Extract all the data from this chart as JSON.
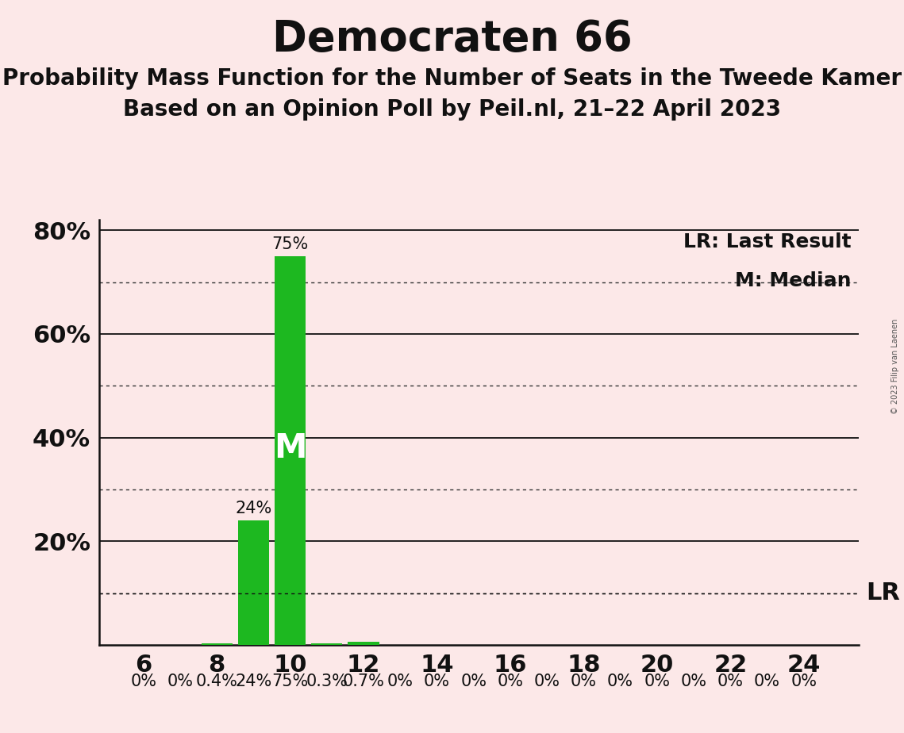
{
  "title": "Democraten 66",
  "subtitle1": "Probability Mass Function for the Number of Seats in the Tweede Kamer",
  "subtitle2": "Based on an Opinion Poll by Peil.nl, 21–22 April 2023",
  "copyright": "© 2023 Filip van Laenen",
  "background_color": "#fce8e8",
  "bar_color": "#1db820",
  "seats": [
    6,
    7,
    8,
    9,
    10,
    11,
    12,
    13,
    14,
    15,
    16,
    17,
    18,
    19,
    20,
    21,
    22,
    23,
    24
  ],
  "probabilities": [
    0.0,
    0.0,
    0.4,
    24.0,
    75.0,
    0.3,
    0.7,
    0.0,
    0.0,
    0.0,
    0.0,
    0.0,
    0.0,
    0.0,
    0.0,
    0.0,
    0.0,
    0.0,
    0.0
  ],
  "labels": [
    "0%",
    "0%",
    "0.4%",
    "24%",
    "75%",
    "0.3%",
    "0.7%",
    "0%",
    "0%",
    "0%",
    "0%",
    "0%",
    "0%",
    "0%",
    "0%",
    "0%",
    "0%",
    "0%",
    "0%"
  ],
  "median_seat": 10,
  "last_result_value": 10.0,
  "ylim": [
    0,
    82
  ],
  "solid_yticks": [
    20,
    40,
    60,
    80
  ],
  "dotted_yticks": [
    10,
    30,
    50,
    70
  ],
  "legend_lr": "LR: Last Result",
  "legend_m": "M: Median",
  "tick_fontsize": 22,
  "title_fontsize": 38,
  "subtitle_fontsize": 20,
  "bar_label_fontsize": 15,
  "legend_fontsize": 18,
  "lr_label_fontsize": 22
}
